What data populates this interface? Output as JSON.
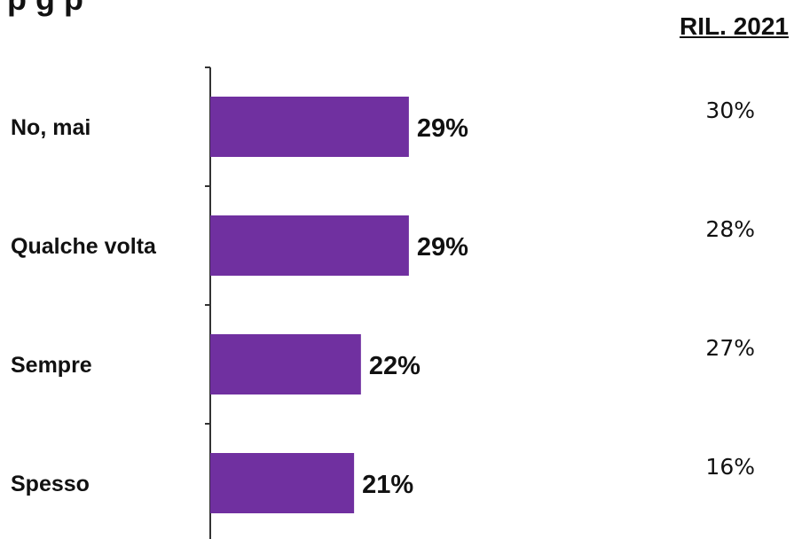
{
  "title_fragment": "p          g p",
  "reference_header": "RIL. 2021",
  "colors": {
    "bar": "#7030a0",
    "axis": "#333333",
    "text": "#111111"
  },
  "chart_data": {
    "type": "bar",
    "orientation": "horizontal",
    "categories": [
      "No, mai",
      "Qualche volta",
      "Sempre",
      "Spesso"
    ],
    "series": [
      {
        "values": [
          29,
          29,
          22,
          21
        ],
        "labels": [
          "29%",
          "29%",
          "22%",
          "21%"
        ]
      }
    ],
    "reference": {
      "name": "RIL. 2021",
      "values": [
        30,
        28,
        27,
        16
      ],
      "labels": [
        "30%",
        "28%",
        "27%",
        "16%"
      ]
    },
    "xlim": [
      0,
      100
    ],
    "grid": false,
    "legend": "none"
  }
}
